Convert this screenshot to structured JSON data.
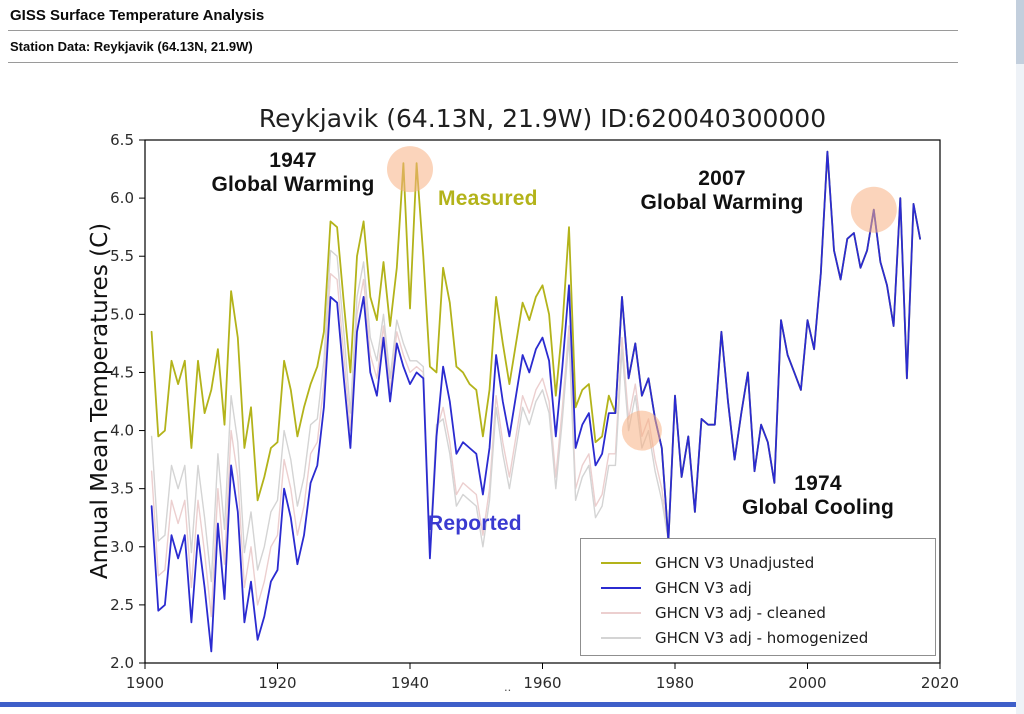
{
  "page": {
    "header_title": "GISS Surface Temperature Analysis",
    "subheader": "Station Data: Reykjavik (64.13N, 21.9W)",
    "footer_dots": "..",
    "accent_bar_color": "#3e5fc9"
  },
  "chart_data": {
    "type": "line",
    "title": "Reykjavik (64.13N, 21.9W) ID:620040300000",
    "xlabel": "",
    "ylabel": "Annual Mean Temperatures (C)",
    "xlim": [
      1900,
      2020
    ],
    "ylim": [
      2.0,
      6.5
    ],
    "xticks": [
      1900,
      1920,
      1940,
      1960,
      1980,
      2000,
      2020
    ],
    "yticks": [
      2.0,
      2.5,
      3.0,
      3.5,
      4.0,
      4.5,
      5.0,
      5.5,
      6.0,
      6.5
    ],
    "grid": false,
    "legend_position": "lower right",
    "highlight_color": "#f7b183",
    "highlight_circles": [
      {
        "x": 1940,
        "y": 6.25,
        "r": 23
      },
      {
        "x": 1975,
        "y": 4.0,
        "r": 20
      },
      {
        "x": 2010,
        "y": 5.9,
        "r": 23
      }
    ],
    "annotations": [
      {
        "id": "ann-1947",
        "lines": [
          "1947",
          "Global Warming"
        ],
        "color": "#111111"
      },
      {
        "id": "measured",
        "lines": [
          "Measured"
        ],
        "color": "#b3b31a"
      },
      {
        "id": "ann-2007",
        "lines": [
          "2007",
          "Global Warming"
        ],
        "color": "#111111"
      },
      {
        "id": "reported",
        "lines": [
          "Reported"
        ],
        "color": "#3a3ad0"
      },
      {
        "id": "ann-1974",
        "lines": [
          "1974",
          "Global Cooling"
        ],
        "color": "#111111"
      }
    ],
    "x": [
      1901,
      1902,
      1903,
      1904,
      1905,
      1906,
      1907,
      1908,
      1909,
      1910,
      1911,
      1912,
      1913,
      1914,
      1915,
      1916,
      1917,
      1918,
      1919,
      1920,
      1921,
      1922,
      1923,
      1924,
      1925,
      1926,
      1927,
      1928,
      1929,
      1930,
      1931,
      1932,
      1933,
      1934,
      1935,
      1936,
      1937,
      1938,
      1939,
      1940,
      1941,
      1942,
      1943,
      1944,
      1945,
      1946,
      1947,
      1948,
      1949,
      1950,
      1951,
      1952,
      1953,
      1954,
      1955,
      1956,
      1957,
      1958,
      1959,
      1960,
      1961,
      1962,
      1963,
      1964,
      1965,
      1966,
      1967,
      1968,
      1969,
      1970,
      1971,
      1972,
      1973,
      1974,
      1975,
      1976,
      1977,
      1978,
      1979,
      1980,
      1981,
      1982,
      1983,
      1984,
      1985,
      1986,
      1987,
      1988,
      1989,
      1990,
      1991,
      1992,
      1993,
      1994,
      1995,
      1996,
      1997,
      1998,
      1999,
      2000,
      2001,
      2002,
      2003,
      2004,
      2005,
      2006,
      2007,
      2008,
      2009,
      2010,
      2011,
      2012,
      2013,
      2014,
      2015,
      2016,
      2017
    ],
    "series": [
      {
        "name": "GHCN V3 Unadjusted",
        "color": "#b3b31a",
        "values": [
          4.85,
          3.95,
          4.0,
          4.6,
          4.4,
          4.6,
          3.85,
          4.6,
          4.15,
          4.35,
          4.7,
          4.05,
          5.2,
          4.8,
          3.85,
          4.2,
          3.4,
          3.6,
          3.85,
          3.9,
          4.6,
          4.35,
          3.95,
          4.2,
          4.4,
          4.55,
          4.85,
          5.8,
          5.75,
          5.1,
          4.5,
          5.5,
          5.8,
          5.15,
          4.95,
          5.45,
          4.9,
          5.4,
          6.3,
          5.05,
          6.3,
          5.5,
          4.55,
          4.5,
          5.4,
          5.1,
          4.55,
          4.5,
          4.4,
          4.35,
          3.95,
          4.35,
          5.15,
          4.75,
          4.4,
          4.75,
          5.1,
          4.95,
          5.15,
          5.25,
          5.0,
          4.3,
          4.9,
          5.75,
          4.2,
          4.35,
          4.4,
          3.9,
          3.95,
          4.3,
          4.15,
          5.15,
          4.45,
          4.75,
          4.3,
          4.45,
          4.1,
          3.85,
          3.05,
          4.3,
          3.6,
          3.95,
          3.3,
          4.1,
          4.05,
          4.05,
          4.85,
          4.25,
          3.75,
          4.15,
          4.5,
          3.65,
          4.05,
          3.9,
          3.55,
          4.95,
          4.65,
          4.5,
          4.35,
          4.95,
          4.7,
          5.35,
          6.4,
          5.55,
          5.3,
          5.65,
          5.7,
          5.4,
          5.55,
          5.9,
          5.45,
          5.25,
          4.9,
          6.0,
          4.45,
          5.95,
          5.65
        ]
      },
      {
        "name": "GHCN V3 adj",
        "color": "#2b2bd0",
        "values": [
          3.35,
          2.45,
          2.5,
          3.1,
          2.9,
          3.1,
          2.35,
          3.1,
          2.65,
          2.1,
          3.2,
          2.55,
          3.7,
          3.3,
          2.35,
          2.7,
          2.2,
          2.4,
          2.7,
          2.8,
          3.5,
          3.25,
          2.85,
          3.1,
          3.55,
          3.7,
          4.2,
          5.15,
          5.1,
          4.45,
          3.85,
          4.85,
          5.15,
          4.5,
          4.3,
          4.8,
          4.25,
          4.75,
          4.55,
          4.4,
          4.5,
          4.45,
          2.9,
          3.95,
          4.55,
          4.25,
          3.8,
          3.9,
          3.85,
          3.8,
          3.45,
          3.85,
          4.65,
          4.25,
          3.95,
          4.3,
          4.65,
          4.5,
          4.7,
          4.8,
          4.6,
          3.95,
          4.55,
          5.25,
          3.85,
          4.05,
          4.15,
          3.7,
          3.8,
          4.15,
          4.15,
          5.15,
          4.45,
          4.75,
          4.3,
          4.45,
          4.1,
          3.85,
          3.05,
          4.3,
          3.6,
          3.95,
          3.3,
          4.1,
          4.05,
          4.05,
          4.85,
          4.25,
          3.75,
          4.15,
          4.5,
          3.65,
          4.05,
          3.9,
          3.55,
          4.95,
          4.65,
          4.5,
          4.35,
          4.95,
          4.7,
          5.35,
          6.4,
          5.55,
          5.3,
          5.65,
          5.7,
          5.4,
          5.55,
          5.9,
          5.45,
          5.25,
          4.9,
          6.0,
          4.45,
          5.95,
          5.65
        ]
      },
      {
        "name": "GHCN V3 adj - cleaned",
        "color": "#eccfcf",
        "values": [
          3.65,
          2.75,
          2.8,
          3.4,
          3.2,
          3.4,
          2.65,
          3.4,
          2.95,
          2.4,
          3.5,
          2.85,
          4.0,
          3.6,
          2.65,
          3.0,
          2.5,
          2.7,
          3.0,
          3.1,
          3.75,
          3.5,
          3.1,
          3.35,
          3.8,
          3.9,
          4.4,
          5.35,
          5.3,
          4.65,
          4.0,
          5.0,
          5.3,
          4.65,
          4.45,
          4.9,
          4.35,
          4.85,
          4.65,
          4.5,
          4.55,
          4.5,
          2.95,
          4.0,
          4.2,
          3.9,
          3.45,
          3.55,
          3.5,
          3.45,
          3.1,
          3.5,
          4.3,
          3.9,
          3.6,
          3.95,
          4.3,
          4.15,
          4.35,
          4.45,
          4.25,
          3.6,
          4.2,
          4.9,
          3.5,
          3.7,
          3.8,
          3.35,
          3.45,
          3.8,
          3.8,
          4.8,
          4.1,
          4.4,
          3.95,
          4.1,
          3.75,
          3.5,
          3.05,
          4.3,
          3.6,
          3.95,
          3.3,
          4.1,
          4.05,
          4.05,
          4.85,
          4.25,
          3.75,
          4.15,
          4.5,
          3.65,
          4.05,
          3.9,
          3.55,
          4.95,
          4.65,
          4.5,
          4.35,
          4.95,
          4.7,
          5.35,
          6.4,
          5.55,
          5.3,
          5.65,
          5.7,
          5.4,
          5.55,
          5.9,
          5.45,
          5.25,
          4.9,
          6.0,
          4.45,
          5.95,
          5.65
        ]
      },
      {
        "name": "GHCN V3 adj - homogenized",
        "color": "#d4d4d4",
        "values": [
          3.95,
          3.05,
          3.1,
          3.7,
          3.5,
          3.7,
          2.95,
          3.7,
          3.25,
          2.7,
          3.8,
          3.15,
          4.3,
          3.9,
          2.95,
          3.3,
          2.8,
          3.0,
          3.3,
          3.4,
          4.0,
          3.75,
          3.35,
          3.6,
          4.05,
          4.1,
          4.6,
          5.55,
          5.5,
          4.85,
          4.15,
          5.15,
          5.45,
          4.8,
          4.6,
          5.0,
          4.45,
          4.95,
          4.75,
          4.6,
          4.6,
          4.55,
          3.0,
          4.05,
          4.1,
          3.8,
          3.35,
          3.45,
          3.4,
          3.35,
          3.0,
          3.4,
          4.2,
          3.8,
          3.5,
          3.85,
          4.2,
          4.05,
          4.25,
          4.35,
          4.15,
          3.5,
          4.1,
          4.8,
          3.4,
          3.6,
          3.7,
          3.25,
          3.35,
          3.7,
          3.7,
          4.7,
          4.0,
          4.3,
          3.85,
          4.0,
          3.65,
          3.4,
          3.05,
          4.3,
          3.6,
          3.95,
          3.3,
          4.1,
          4.05,
          4.05,
          4.85,
          4.25,
          3.75,
          4.15,
          4.5,
          3.65,
          4.05,
          3.9,
          3.55,
          4.95,
          4.65,
          4.5,
          4.35,
          4.95,
          4.7,
          5.35,
          6.4,
          5.55,
          5.3,
          5.65,
          5.7,
          5.4,
          5.55,
          5.9,
          5.45,
          5.25,
          4.9,
          6.0,
          4.45,
          5.95,
          5.65
        ]
      }
    ]
  }
}
